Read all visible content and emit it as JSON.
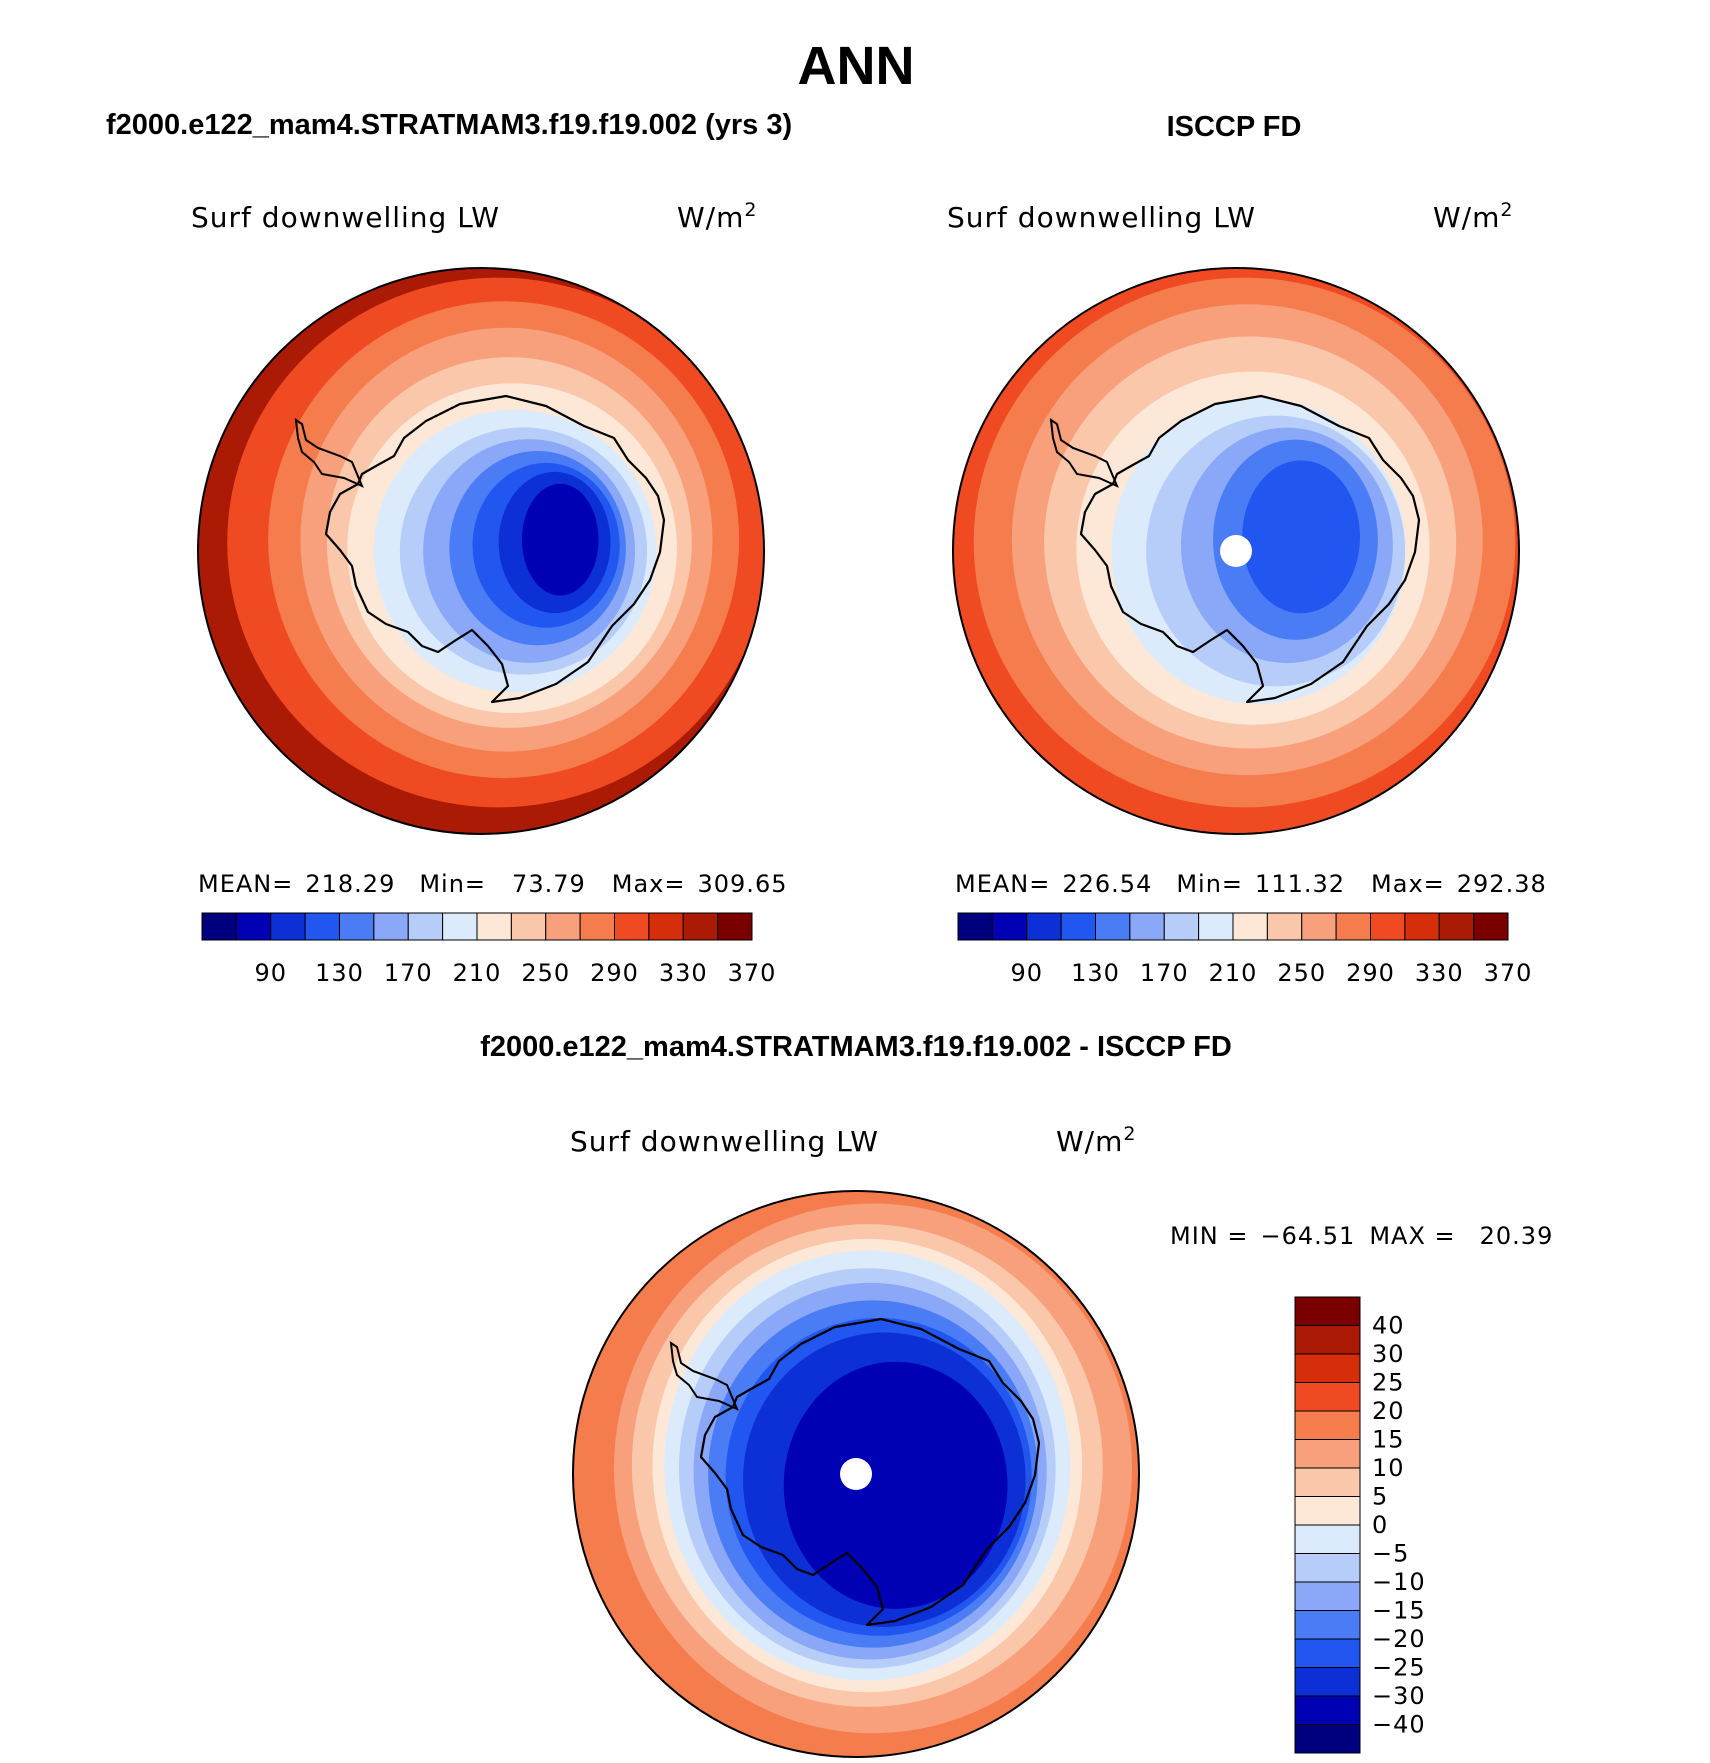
{
  "title": "ANN",
  "panels": [
    {
      "heading": "f2000.e122_mam4.STRATMAM3.f19.f19.002 (yrs 3)",
      "variable": "Surf downwelling LW",
      "units": "W/m",
      "units_exp": "2",
      "stats": {
        "mean_label": "MEAN=",
        "mean": "218.29",
        "min_label": "Min=",
        "min": "73.79",
        "max_label": "Max=",
        "max": "309.65"
      },
      "pole_missing": false,
      "rings": [
        {
          "level": "370",
          "rx": 1.0,
          "ry": 1.0,
          "dx": 0.0,
          "dy": 0.0
        },
        {
          "level": "330",
          "rx": 0.92,
          "ry": 0.9,
          "dx": 0.06,
          "dy": -0.03
        },
        {
          "level": "290",
          "rx": 0.8,
          "ry": 0.81,
          "dx": 0.08,
          "dy": -0.04
        },
        {
          "level": "270",
          "rx": 0.7,
          "ry": 0.72,
          "dx": 0.09,
          "dy": -0.04
        },
        {
          "level": "250",
          "rx": 0.62,
          "ry": 0.63,
          "dx": 0.1,
          "dy": -0.03
        },
        {
          "level": "230",
          "rx": 0.56,
          "ry": 0.56,
          "dx": 0.11,
          "dy": -0.01
        },
        {
          "level": "210",
          "rx": 0.48,
          "ry": 0.48,
          "dx": 0.12,
          "dy": 0.0
        },
        {
          "level": "190",
          "rx": 0.42,
          "ry": 0.42,
          "dx": 0.15,
          "dy": 0.0
        },
        {
          "level": "170",
          "rx": 0.36,
          "ry": 0.38,
          "dx": 0.17,
          "dy": 0.0
        },
        {
          "level": "150",
          "rx": 0.3,
          "ry": 0.33,
          "dx": 0.2,
          "dy": -0.01
        },
        {
          "level": "130",
          "rx": 0.25,
          "ry": 0.28,
          "dx": 0.23,
          "dy": -0.02
        },
        {
          "level": "110",
          "rx": 0.19,
          "ry": 0.24,
          "dx": 0.26,
          "dy": -0.03
        },
        {
          "level": "90",
          "rx": 0.13,
          "ry": 0.19,
          "dx": 0.28,
          "dy": -0.04
        }
      ]
    },
    {
      "heading": "ISCCP FD",
      "variable": "Surf downwelling LW",
      "units": "W/m",
      "units_exp": "2",
      "stats": {
        "mean_label": "MEAN=",
        "mean": "226.54",
        "min_label": "Min=",
        "min": "111.32",
        "max_label": "Max=",
        "max": "292.38"
      },
      "pole_missing": true,
      "rings": [
        {
          "level": "330",
          "rx": 1.0,
          "ry": 1.0,
          "dx": 0.0,
          "dy": 0.0
        },
        {
          "level": "290",
          "rx": 0.92,
          "ry": 0.9,
          "dx": 0.03,
          "dy": -0.03
        },
        {
          "level": "270",
          "rx": 0.8,
          "ry": 0.8,
          "dx": 0.04,
          "dy": -0.04
        },
        {
          "level": "250",
          "rx": 0.7,
          "ry": 0.7,
          "dx": 0.05,
          "dy": -0.03
        },
        {
          "level": "230",
          "rx": 0.6,
          "ry": 0.6,
          "dx": 0.06,
          "dy": -0.01
        },
        {
          "level": "210",
          "rx": 0.5,
          "ry": 0.52,
          "dx": 0.08,
          "dy": 0.0
        },
        {
          "level": "190",
          "rx": 0.44,
          "ry": 0.46,
          "dx": 0.14,
          "dy": 0.0
        },
        {
          "level": "170",
          "rx": 0.36,
          "ry": 0.4,
          "dx": 0.18,
          "dy": -0.02
        },
        {
          "level": "150",
          "rx": 0.28,
          "ry": 0.34,
          "dx": 0.21,
          "dy": -0.04
        },
        {
          "level": "130",
          "rx": 0.2,
          "ry": 0.26,
          "dx": 0.23,
          "dy": -0.05
        }
      ]
    }
  ],
  "shared_colorbar": {
    "labels": [
      "90",
      "130",
      "170",
      "210",
      "250",
      "290",
      "330",
      "370"
    ],
    "colors": [
      "#00007f",
      "#0000b4",
      "#0d2fd6",
      "#2156f0",
      "#4a7cf5",
      "#8aa8f7",
      "#b7cdf9",
      "#dcebfb",
      "#fde8d8",
      "#fbc7aa",
      "#f8a07c",
      "#f57c4d",
      "#f04a22",
      "#d62e0a",
      "#aa1a05",
      "#7a0000"
    ]
  },
  "difference": {
    "heading": "f2000.e122_mam4.STRATMAM3.f19.f19.002 - ISCCP FD",
    "variable": "Surf downwelling LW",
    "units": "W/m",
    "units_exp": "2",
    "stats": {
      "min_label": "MIN =",
      "min": "−64.51",
      "max_label": "MAX =",
      "max": "20.39"
    },
    "pole_missing": true,
    "colorbar_labels": [
      "40",
      "30",
      "25",
      "20",
      "15",
      "10",
      "5",
      "0",
      "−5",
      "−10",
      "−15",
      "−20",
      "−25",
      "−30",
      "−40"
    ],
    "colorbar_colors": [
      "#7a0000",
      "#aa1a05",
      "#d62e0a",
      "#f04a22",
      "#f57c4d",
      "#f8a07c",
      "#fbc7aa",
      "#fde8d8",
      "#dcebfb",
      "#b7cdf9",
      "#8aa8f7",
      "#4a7cf5",
      "#2156f0",
      "#0d2fd6",
      "#0000b4",
      "#00007f"
    ],
    "rings": [
      {
        "level": "15",
        "rx": 1.0,
        "ry": 1.0,
        "dx": 0.0,
        "dy": 0.0
      },
      {
        "level": "10",
        "rx": 0.88,
        "ry": 0.9,
        "dx": 0.06,
        "dy": -0.02
      },
      {
        "level": "5",
        "rx": 0.8,
        "ry": 0.82,
        "dx": 0.04,
        "dy": -0.03
      },
      {
        "level": "0",
        "rx": 0.73,
        "ry": 0.77,
        "dx": 0.04,
        "dy": -0.03
      },
      {
        "level": "-5",
        "rx": 0.69,
        "ry": 0.73,
        "dx": 0.04,
        "dy": -0.03
      },
      {
        "level": "-10",
        "rx": 0.64,
        "ry": 0.68,
        "dx": 0.04,
        "dy": -0.02
      },
      {
        "level": "-15",
        "rx": 0.6,
        "ry": 0.64,
        "dx": 0.05,
        "dy": -0.01
      },
      {
        "level": "-20",
        "rx": 0.56,
        "ry": 0.59,
        "dx": 0.06,
        "dy": 0.0
      },
      {
        "level": "-25",
        "rx": 0.52,
        "ry": 0.54,
        "dx": 0.08,
        "dy": 0.01
      },
      {
        "level": "-30",
        "rx": 0.48,
        "ry": 0.5,
        "dx": 0.1,
        "dy": 0.02
      },
      {
        "level": "-40",
        "rx": 0.38,
        "ry": 0.42,
        "dx": 0.14,
        "dy": 0.04
      }
    ]
  }
}
